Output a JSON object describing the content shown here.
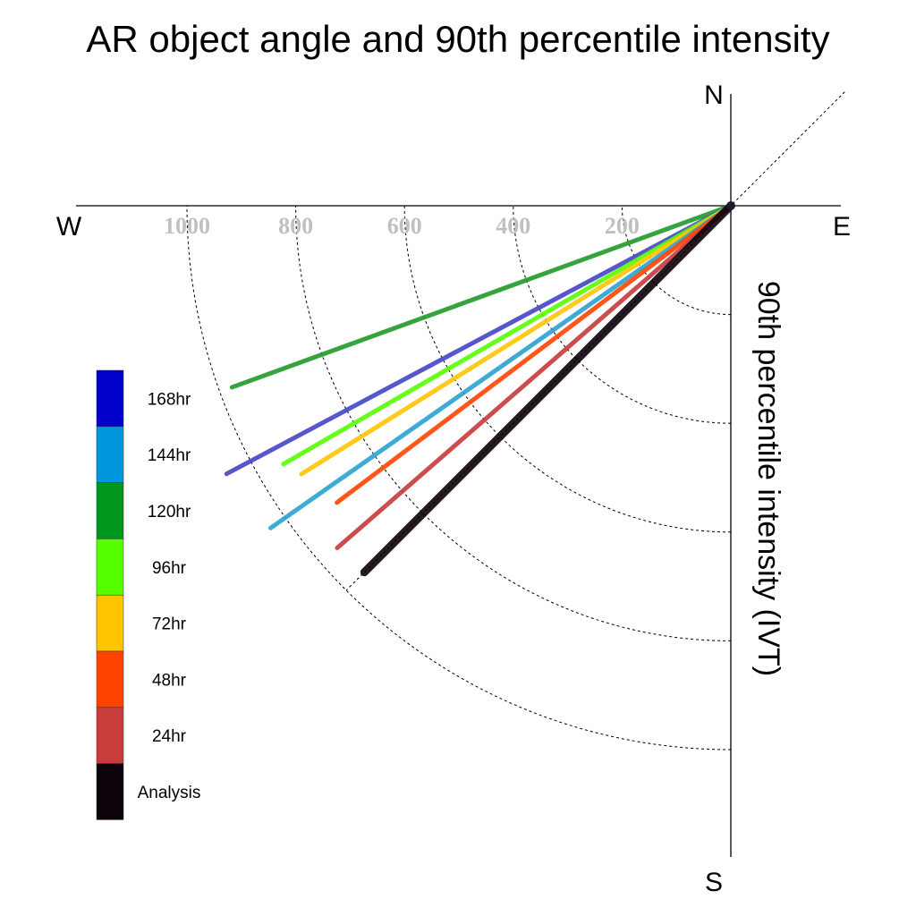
{
  "chart_data": {
    "type": "polar-vector",
    "title": "AR object angle and 90th percentile intensity",
    "radial_label": "90th percentile intensity (IVT)",
    "compass": {
      "north": "N",
      "south": "S",
      "east": "E",
      "west": "W"
    },
    "ring_values": [
      200,
      400,
      600,
      800,
      1000
    ],
    "rmax": 1000,
    "series": [
      {
        "name": "120hr",
        "color": "#1f9a2a",
        "angle_deg": 250,
        "intensity": 976
      },
      {
        "name": "168hr",
        "color": "#4545c6",
        "angle_deg": 242,
        "intensity": 1050
      },
      {
        "name": "96hr",
        "color": "#55ff00",
        "angle_deg": 240,
        "intensity": 950
      },
      {
        "name": "72hr",
        "color": "#ffc400",
        "angle_deg": 238,
        "intensity": 931
      },
      {
        "name": "144hr",
        "color": "#2aa2d0",
        "angle_deg": 235,
        "intensity": 1033
      },
      {
        "name": "48hr",
        "color": "#ff4400",
        "angle_deg": 233,
        "intensity": 907
      },
      {
        "name": "24hr",
        "color": "#c63a3a",
        "angle_deg": 229,
        "intensity": 959
      },
      {
        "name": "Analysis",
        "color": "#0c020a",
        "angle_deg": 225,
        "intensity": 953
      }
    ],
    "legend": [
      {
        "label": "168hr",
        "color": "#0000c8"
      },
      {
        "label": "144hr",
        "color": "#0096dc"
      },
      {
        "label": "120hr",
        "color": "#00961e"
      },
      {
        "label": "96hr",
        "color": "#55ff00"
      },
      {
        "label": "72hr",
        "color": "#ffc400"
      },
      {
        "label": "48hr",
        "color": "#ff4400"
      },
      {
        "label": "24hr",
        "color": "#c83c3c"
      },
      {
        "label": "Analysis",
        "color": "#0c020a"
      }
    ]
  }
}
